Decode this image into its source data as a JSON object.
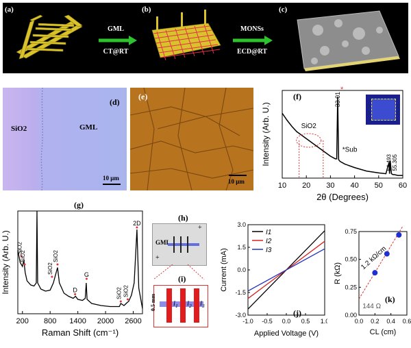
{
  "panels": {
    "a": {
      "label": "(a)"
    },
    "b": {
      "label": "(b)"
    },
    "c": {
      "label": "(c)"
    },
    "d": {
      "label": "(d)",
      "left_text": "SiO2",
      "right_text": "GML",
      "scale": "10 μm"
    },
    "e": {
      "label": "(e)",
      "scale": "10 μm"
    },
    "f": {
      "label": "(f)"
    },
    "g": {
      "label": "(g)"
    },
    "h": {
      "label": "(h)",
      "gml": "GML"
    },
    "i": {
      "label": "(i)",
      "scale": "0.5 mm"
    },
    "j": {
      "label": "(j)"
    },
    "k": {
      "label": "(k)"
    }
  },
  "arrows": {
    "ab": {
      "top": "GML",
      "bottom": "CT@RT"
    },
    "bc": {
      "top": "MONSs",
      "bottom": "ECD@RT"
    }
  },
  "colors": {
    "gold": "#d9c22b",
    "arrow_green": "#2ec22e",
    "graphene_red": "#e0304a",
    "sio2_purple": "#b9aef0",
    "gml_blue": "#a8b4ec",
    "optical_orange": "#b8731f"
  },
  "chart_data": [
    {
      "id": "f",
      "type": "line",
      "title": "",
      "xlabel": "2θ (Degrees)",
      "ylabel": "Intensity (Arb. U.)",
      "xlim": [
        10,
        60
      ],
      "xticks": [
        10,
        20,
        30,
        40,
        50,
        60
      ],
      "series": [
        {
          "x": [
            10,
            12,
            14,
            16,
            18,
            20,
            22,
            24,
            26,
            28,
            30,
            32,
            32.6,
            33.0,
            33.4,
            34,
            36,
            40,
            45,
            50,
            53,
            54.3,
            54.5,
            54.8,
            55.3,
            55.9,
            56.5,
            58,
            60
          ],
          "y": [
            0.74,
            0.66,
            0.59,
            0.53,
            0.49,
            0.45,
            0.41,
            0.37,
            0.33,
            0.29,
            0.25,
            0.22,
            0.22,
            0.93,
            0.21,
            0.19,
            0.16,
            0.12,
            0.08,
            0.06,
            0.05,
            0.18,
            0.05,
            0.2,
            0.05,
            0.04,
            0.04,
            0.03,
            0.03
          ]
        }
      ],
      "annotations": [
        "SiO2",
        "33.01",
        "*Sub",
        "54.493",
        "55.305"
      ]
    },
    {
      "id": "g",
      "type": "line",
      "title": "",
      "xlabel": "Raman Shift (cm⁻¹)",
      "ylabel": "Intensity (Arb. U.)",
      "xlim": [
        100,
        2800
      ],
      "xticks": [
        200,
        800,
        1400,
        2000,
        2600
      ],
      "series": [
        {
          "x": [
            100,
            150,
            200,
            230,
            260,
            300,
            380,
            450,
            500,
            515,
            530,
            600,
            700,
            800,
            870,
            900,
            960,
            1000,
            1100,
            1200,
            1300,
            1350,
            1400,
            1500,
            1560,
            1582,
            1600,
            1700,
            1900,
            2100,
            2300,
            2330,
            2400,
            2470,
            2500,
            2560,
            2620,
            2680,
            2720,
            2800
          ],
          "y": [
            0.62,
            0.5,
            0.46,
            0.52,
            0.4,
            0.32,
            0.28,
            0.27,
            0.3,
            1.0,
            0.3,
            0.24,
            0.22,
            0.23,
            0.3,
            0.35,
            0.45,
            0.3,
            0.2,
            0.17,
            0.15,
            0.17,
            0.14,
            0.13,
            0.15,
            0.3,
            0.14,
            0.1,
            0.08,
            0.07,
            0.07,
            0.1,
            0.08,
            0.11,
            0.12,
            0.18,
            0.3,
            0.82,
            0.25,
            0.05
          ]
        }
      ],
      "annotations": [
        "SiO2",
        "SiO2",
        "SiO2",
        "SiO2",
        "D",
        "G",
        "SiO2",
        "SiO2",
        "2D"
      ]
    },
    {
      "id": "j",
      "type": "line",
      "title": "",
      "xlabel": "Applied Voltage (V)",
      "ylabel": "Current (mA)",
      "xlim": [
        -1.0,
        1.0
      ],
      "ylim": [
        -3.0,
        3.0
      ],
      "xticks": [
        "-1.0",
        "-0.5",
        "0.0",
        "0.5",
        "1.0"
      ],
      "yticks": [
        "-3.0",
        "-1.5",
        "0.0",
        "1.5",
        "3.0"
      ],
      "series": [
        {
          "name": "I1",
          "color": "#000000",
          "x": [
            -1.0,
            1.0
          ],
          "y": [
            -2.6,
            2.6
          ]
        },
        {
          "name": "I2",
          "color": "#d92020",
          "x": [
            -1.0,
            1.0
          ],
          "y": [
            -1.9,
            1.9
          ]
        },
        {
          "name": "I3",
          "color": "#2030c0",
          "x": [
            -1.0,
            1.0
          ],
          "y": [
            -1.4,
            1.4
          ]
        }
      ],
      "legend": [
        "I1",
        "I2",
        "I3"
      ]
    },
    {
      "id": "k",
      "type": "scatter",
      "title": "",
      "xlabel": "CL (cm)",
      "ylabel": "R (kΩ)",
      "xlim": [
        0.0,
        0.6
      ],
      "ylim": [
        0.0,
        0.75
      ],
      "xticks": [
        "0.0",
        "0.2",
        "0.4",
        "0.6"
      ],
      "yticks": [
        "0.00",
        "0.25",
        "0.50",
        "0.75"
      ],
      "series": [
        {
          "x": [
            0.2,
            0.35,
            0.5
          ],
          "y": [
            0.38,
            0.55,
            0.72
          ]
        }
      ],
      "fit": {
        "x": [
          0.0,
          0.55
        ],
        "y": [
          0.144,
          0.8
        ]
      },
      "annotations": [
        "1.2 kΩ/cm",
        "144 Ω"
      ]
    }
  ]
}
